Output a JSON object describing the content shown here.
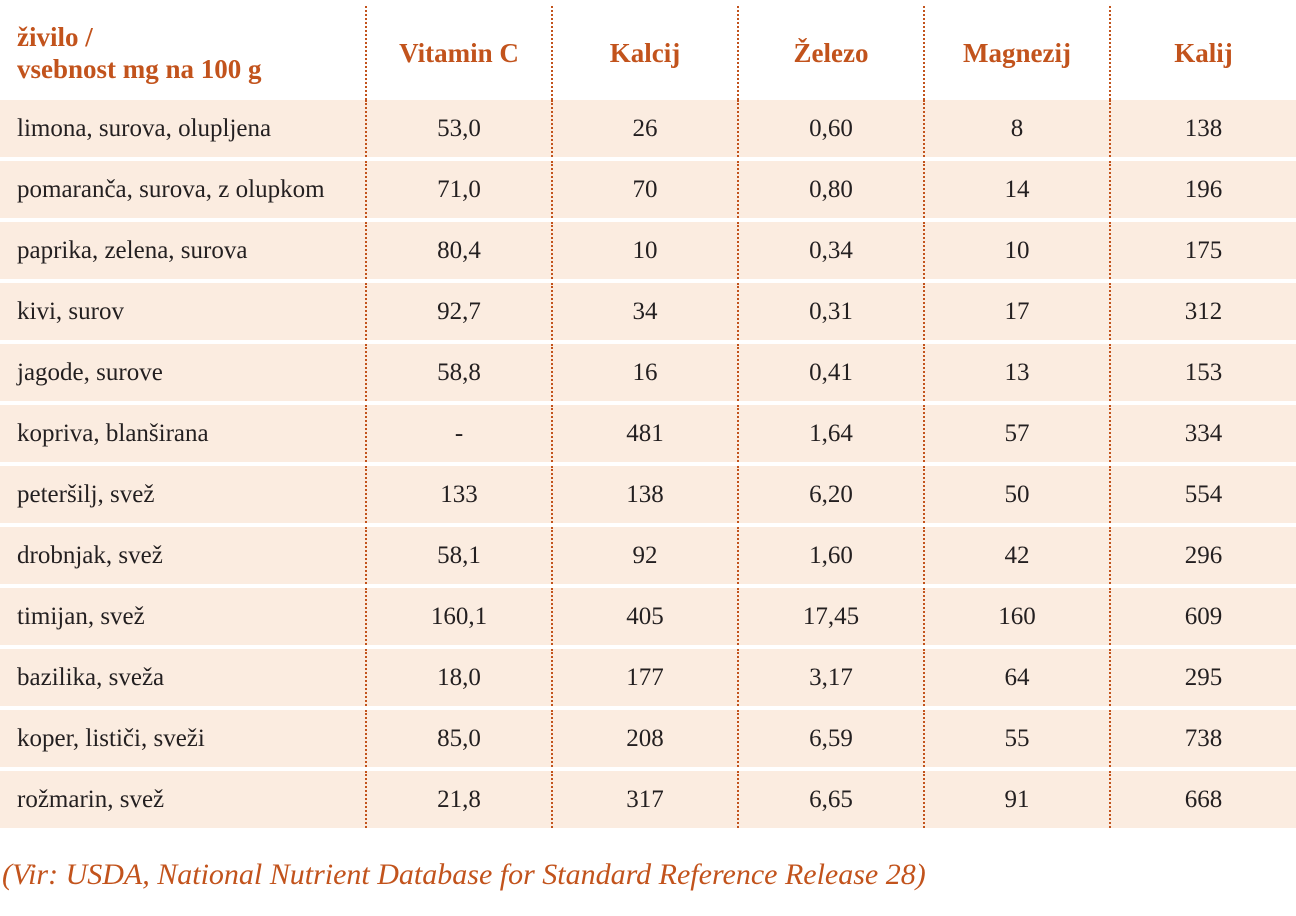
{
  "table": {
    "headers": {
      "food_line1": "živilo /",
      "food_line2": "vsebnost mg na 100 g",
      "vitamin_c": "Vitamin C",
      "kalcij": "Kalcij",
      "zelezo": "Železo",
      "magnezij": "Magnezij",
      "kalij": "Kalij"
    },
    "rows": [
      [
        "limona, surova, olupljena",
        "53,0",
        "26",
        "0,60",
        "8",
        "138"
      ],
      [
        "pomaranča, surova, z olupkom",
        "71,0",
        "70",
        "0,80",
        "14",
        "196"
      ],
      [
        "paprika, zelena, surova",
        "80,4",
        "10",
        "0,34",
        "10",
        "175"
      ],
      [
        "kivi, surov",
        "92,7",
        "34",
        "0,31",
        "17",
        "312"
      ],
      [
        "jagode, surove",
        "58,8",
        "16",
        "0,41",
        "13",
        "153"
      ],
      [
        "kopriva, blanširana",
        "-",
        "481",
        "1,64",
        "57",
        "334"
      ],
      [
        "peteršilj, svež",
        "133",
        "138",
        "6,20",
        "50",
        "554"
      ],
      [
        "drobnjak, svež",
        "58,1",
        "92",
        "1,60",
        "42",
        "296"
      ],
      [
        "timijan, svež",
        "160,1",
        "405",
        "17,45",
        "160",
        "609"
      ],
      [
        "bazilika, sveža",
        "18,0",
        "177",
        "3,17",
        "64",
        "295"
      ],
      [
        "koper, lističi, sveži",
        "85,0",
        "208",
        "6,59",
        "55",
        "738"
      ],
      [
        "rožmarin, svež",
        "21,8",
        "317",
        "6,65",
        "91",
        "668"
      ]
    ]
  },
  "source": "(Vir: USDA, National Nutrient Database for Standard Reference Release 28)",
  "colors": {
    "accent": "#c2531c",
    "row_background": "#fbece0",
    "text": "#231f20"
  }
}
